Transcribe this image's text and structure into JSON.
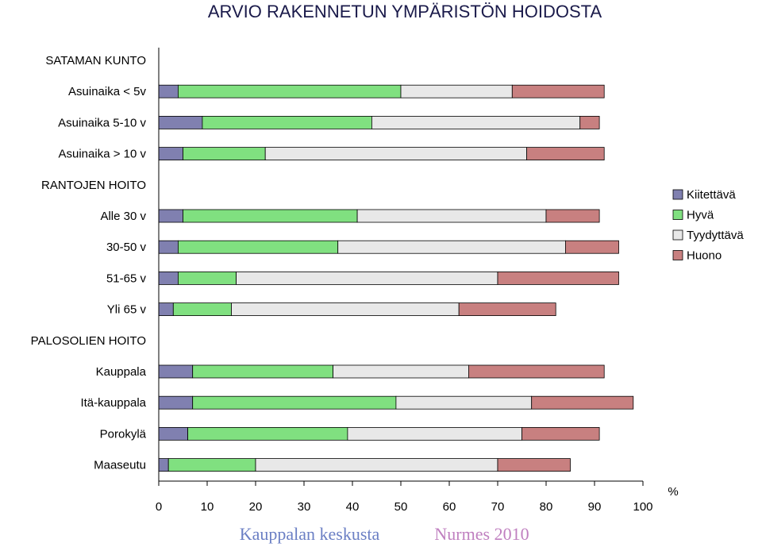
{
  "chart_data": {
    "type": "bar",
    "orientation": "horizontal",
    "stacked": true,
    "title": "ARVIO RAKENNETUN YMPÄRISTÖN HOIDOSTA",
    "xlabel": "%",
    "xlim": [
      0,
      100
    ],
    "x_ticks": [
      "0",
      "10",
      "20",
      "30",
      "40",
      "50",
      "60",
      "70",
      "80",
      "90",
      "100"
    ],
    "categories": [
      "SATAMAN KUNTO",
      "Asuinaika < 5v",
      "Asuinaika 5-10 v",
      "Asuinaika > 10 v",
      "RANTOJEN HOITO",
      "Alle 30 v",
      "30-50 v",
      "51-65 v",
      "Yli 65 v",
      "PALOSOLIEN HOITO",
      "Kauppala",
      "Itä-kauppala",
      "Porokylä",
      "Maaseutu"
    ],
    "series": [
      {
        "name": "Kiitettävä",
        "color": "#8080b0",
        "values": [
          null,
          4,
          9,
          5,
          null,
          5,
          4,
          4,
          3,
          null,
          7,
          7,
          6,
          2
        ]
      },
      {
        "name": "Hyvä",
        "color": "#80e080",
        "values": [
          null,
          46,
          35,
          17,
          null,
          36,
          33,
          12,
          12,
          null,
          29,
          42,
          33,
          18
        ]
      },
      {
        "name": "Tyydyttävä",
        "color": "#e8e8e8",
        "values": [
          null,
          23,
          43,
          54,
          null,
          39,
          47,
          54,
          47,
          null,
          28,
          28,
          36,
          50
        ]
      },
      {
        "name": "Huono",
        "color": "#c88080",
        "values": [
          null,
          19,
          4,
          16,
          null,
          11,
          11,
          25,
          20,
          null,
          28,
          21,
          16,
          15
        ]
      }
    ],
    "legend_position": "right",
    "grid": false
  },
  "footer": {
    "left": "Kauppalan keskusta",
    "right": "Nurmes 2010",
    "left_color": "#6b7fc4",
    "right_color": "#c080c0"
  }
}
